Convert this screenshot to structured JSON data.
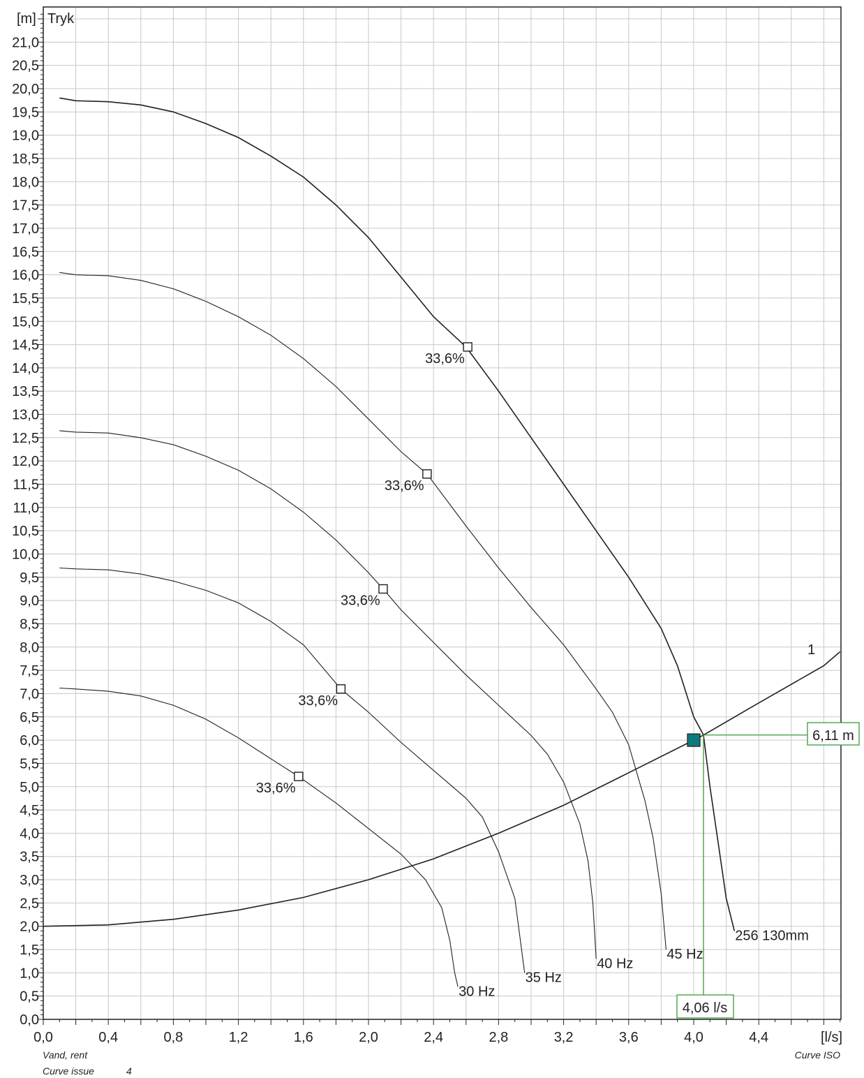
{
  "chart_data": {
    "type": "line",
    "ylabel_unit": "[m]",
    "ylabel": "Tryk",
    "xlabel_unit": "[l/s]",
    "xlim": [
      0,
      4.9
    ],
    "ylim": [
      0,
      21.7
    ],
    "grid": true,
    "x_ticks": [
      "0,0",
      "0,4",
      "0,8",
      "1,2",
      "1,6",
      "2,0",
      "2,4",
      "2,8",
      "3,2",
      "3,6",
      "4,0",
      "4,4"
    ],
    "y_ticks": [
      "0,0",
      "0,5",
      "1,0",
      "1,5",
      "2,0",
      "2,5",
      "3,0",
      "3,5",
      "4,0",
      "4,5",
      "5,0",
      "5,5",
      "6,0",
      "6,5",
      "7,0",
      "7,5",
      "8,0",
      "8,5",
      "9,0",
      "9,5",
      "10,0",
      "10,5",
      "11,0",
      "11,5",
      "12,0",
      "12,5",
      "13,0",
      "13,5",
      "14,0",
      "14,5",
      "15,0",
      "15,5",
      "16,0",
      "16,5",
      "17,0",
      "17,5",
      "18,0",
      "18,5",
      "19,0",
      "19,5",
      "20,0",
      "20,5",
      "21,0"
    ],
    "series": [
      {
        "name": "256 130mm",
        "points": [
          [
            0.1,
            19.8
          ],
          [
            0.2,
            19.74
          ],
          [
            0.4,
            19.72
          ],
          [
            0.6,
            19.65
          ],
          [
            0.8,
            19.5
          ],
          [
            1.0,
            19.25
          ],
          [
            1.2,
            18.95
          ],
          [
            1.4,
            18.55
          ],
          [
            1.6,
            18.1
          ],
          [
            1.8,
            17.5
          ],
          [
            2.0,
            16.8
          ],
          [
            2.2,
            15.95
          ],
          [
            2.4,
            15.1
          ],
          [
            2.6,
            14.45
          ],
          [
            2.8,
            13.5
          ],
          [
            3.0,
            12.5
          ],
          [
            3.2,
            11.5
          ],
          [
            3.4,
            10.5
          ],
          [
            3.6,
            9.5
          ],
          [
            3.8,
            8.4
          ],
          [
            3.9,
            7.6
          ],
          [
            4.0,
            6.5
          ],
          [
            4.06,
            6.11
          ],
          [
            4.1,
            5.0
          ],
          [
            4.15,
            3.8
          ],
          [
            4.2,
            2.6
          ],
          [
            4.25,
            1.9
          ]
        ],
        "label_pos": [
          4.25,
          1.9
        ]
      },
      {
        "name": "45 Hz",
        "points": [
          [
            0.1,
            16.05
          ],
          [
            0.2,
            16.0
          ],
          [
            0.4,
            15.98
          ],
          [
            0.6,
            15.88
          ],
          [
            0.8,
            15.7
          ],
          [
            1.0,
            15.43
          ],
          [
            1.2,
            15.1
          ],
          [
            1.4,
            14.7
          ],
          [
            1.6,
            14.2
          ],
          [
            1.8,
            13.6
          ],
          [
            2.0,
            12.9
          ],
          [
            2.2,
            12.2
          ],
          [
            2.36,
            11.72
          ],
          [
            2.6,
            10.6
          ],
          [
            2.8,
            9.7
          ],
          [
            3.0,
            8.85
          ],
          [
            3.2,
            8.05
          ],
          [
            3.4,
            7.1
          ],
          [
            3.5,
            6.6
          ],
          [
            3.6,
            5.9
          ],
          [
            3.7,
            4.7
          ],
          [
            3.75,
            3.9
          ],
          [
            3.8,
            2.7
          ],
          [
            3.83,
            1.5
          ]
        ],
        "label_pos": [
          3.83,
          1.5
        ]
      },
      {
        "name": "40 Hz",
        "points": [
          [
            0.1,
            12.65
          ],
          [
            0.2,
            12.62
          ],
          [
            0.4,
            12.6
          ],
          [
            0.6,
            12.5
          ],
          [
            0.8,
            12.35
          ],
          [
            1.0,
            12.1
          ],
          [
            1.2,
            11.8
          ],
          [
            1.4,
            11.4
          ],
          [
            1.6,
            10.9
          ],
          [
            1.8,
            10.3
          ],
          [
            2.0,
            9.6
          ],
          [
            2.09,
            9.25
          ],
          [
            2.2,
            8.8
          ],
          [
            2.4,
            8.1
          ],
          [
            2.6,
            7.4
          ],
          [
            2.8,
            6.75
          ],
          [
            3.0,
            6.1
          ],
          [
            3.1,
            5.7
          ],
          [
            3.2,
            5.1
          ],
          [
            3.3,
            4.2
          ],
          [
            3.35,
            3.4
          ],
          [
            3.38,
            2.5
          ],
          [
            3.4,
            1.3
          ]
        ],
        "label_pos": [
          3.4,
          1.3
        ]
      },
      {
        "name": "35 Hz",
        "points": [
          [
            0.1,
            9.7
          ],
          [
            0.2,
            9.68
          ],
          [
            0.4,
            9.66
          ],
          [
            0.6,
            9.57
          ],
          [
            0.8,
            9.42
          ],
          [
            1.0,
            9.22
          ],
          [
            1.2,
            8.95
          ],
          [
            1.4,
            8.55
          ],
          [
            1.6,
            8.05
          ],
          [
            1.83,
            7.1
          ],
          [
            2.0,
            6.6
          ],
          [
            2.2,
            5.95
          ],
          [
            2.4,
            5.35
          ],
          [
            2.6,
            4.75
          ],
          [
            2.7,
            4.35
          ],
          [
            2.8,
            3.6
          ],
          [
            2.9,
            2.6
          ],
          [
            2.96,
            1.0
          ]
        ],
        "label_pos": [
          2.96,
          1.0
        ]
      },
      {
        "name": "30 Hz",
        "points": [
          [
            0.1,
            7.12
          ],
          [
            0.2,
            7.1
          ],
          [
            0.4,
            7.05
          ],
          [
            0.6,
            6.95
          ],
          [
            0.8,
            6.75
          ],
          [
            1.0,
            6.45
          ],
          [
            1.2,
            6.05
          ],
          [
            1.4,
            5.6
          ],
          [
            1.57,
            5.22
          ],
          [
            1.8,
            4.65
          ],
          [
            2.0,
            4.1
          ],
          [
            2.2,
            3.55
          ],
          [
            2.35,
            3.0
          ],
          [
            2.45,
            2.4
          ],
          [
            2.5,
            1.7
          ],
          [
            2.53,
            1.0
          ],
          [
            2.55,
            0.7
          ]
        ],
        "label_pos": [
          2.55,
          0.7
        ]
      },
      {
        "name": "1",
        "points": [
          [
            0.0,
            2.0
          ],
          [
            0.4,
            2.03
          ],
          [
            0.8,
            2.15
          ],
          [
            1.2,
            2.35
          ],
          [
            1.6,
            2.62
          ],
          [
            2.0,
            3.0
          ],
          [
            2.4,
            3.45
          ],
          [
            2.8,
            4.0
          ],
          [
            3.2,
            4.6
          ],
          [
            3.6,
            5.3
          ],
          [
            4.0,
            6.0
          ],
          [
            4.06,
            6.11
          ],
          [
            4.4,
            6.8
          ],
          [
            4.8,
            7.6
          ],
          [
            4.9,
            7.9
          ]
        ],
        "label_pos": [
          4.7,
          7.8
        ]
      }
    ],
    "efficiency_markers": [
      {
        "x": 2.61,
        "y": 14.45,
        "label": "33,6%"
      },
      {
        "x": 2.36,
        "y": 11.72,
        "label": "33,6%"
      },
      {
        "x": 2.09,
        "y": 9.25,
        "label": "33,6%"
      },
      {
        "x": 1.83,
        "y": 7.1,
        "label": "33,6%"
      },
      {
        "x": 1.57,
        "y": 5.22,
        "label": "33,6%"
      }
    ],
    "duty_point": {
      "x": 4.0,
      "y": 6.0,
      "color": "#0e7a7a"
    },
    "operating_point": {
      "x": 4.06,
      "y": 6.11,
      "x_label": "4,06 l/s",
      "y_label": "6,11 m",
      "color": "#3a9a3a"
    }
  },
  "footer": {
    "medium": "Vand, rent",
    "curve_issue_label": "Curve issue",
    "curve_issue_value": "4",
    "standard": "Curve ISO"
  }
}
